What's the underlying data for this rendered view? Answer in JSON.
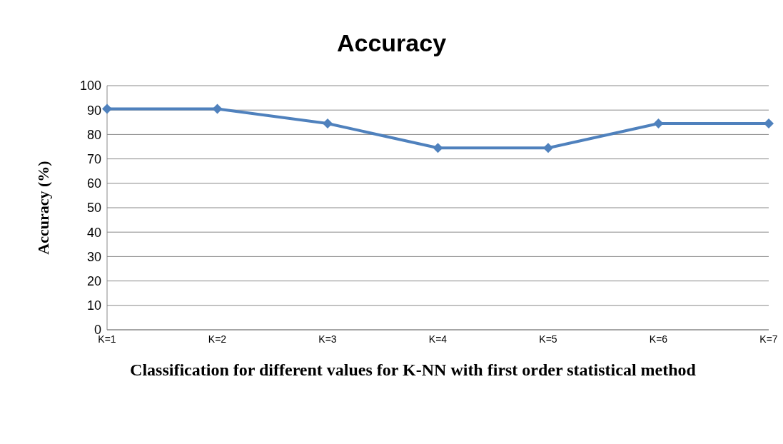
{
  "chart_data": {
    "type": "line",
    "title": "Accuracy",
    "xlabel": "Classification for different values for K-NN with first order statistical method",
    "ylabel": "Accuracy (%)",
    "categories": [
      "K=1",
      "K=2",
      "K=3",
      "K=4",
      "K=5",
      "K=6",
      "K=7"
    ],
    "series": [
      {
        "color": "#4f81bd",
        "values": [
          90.5,
          90.5,
          84.5,
          74.5,
          74.5,
          84.5,
          84.5
        ]
      }
    ],
    "ylim": [
      0,
      100
    ],
    "yticks": [
      0,
      10,
      20,
      30,
      40,
      50,
      60,
      70,
      80,
      90,
      100
    ],
    "grid": "y",
    "legend": false,
    "marker": "diamond",
    "line_style": "solid"
  }
}
